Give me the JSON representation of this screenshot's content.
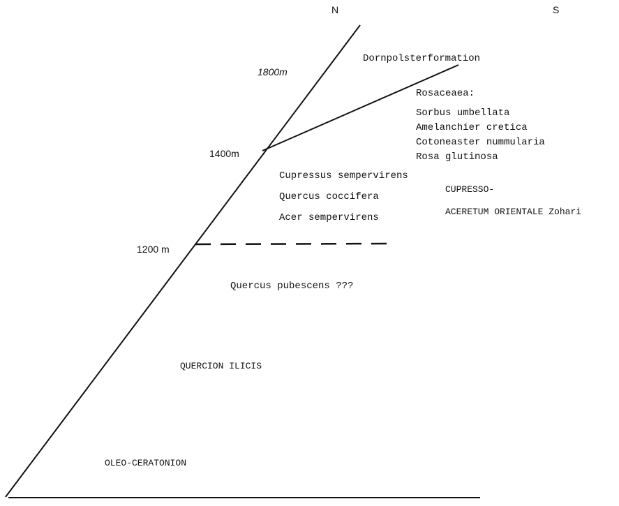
{
  "orientation": {
    "north": "N",
    "south": "S"
  },
  "altitudes": {
    "a1800": "1800m",
    "a1400": "1400m",
    "a1200": "1200 m"
  },
  "zones": {
    "upper": {
      "title": "Dornpolsterformation",
      "family": "Rosaceaea:",
      "species": [
        "Sorbus umbellata",
        "Amelanchier cretica",
        "Cotoneaster nummularia",
        "Rosa glutinosa"
      ]
    },
    "middle": {
      "species": [
        "Cupressus sempervirens",
        "Quercus coccifera",
        "Acer sempervirens"
      ],
      "association_line1": "CUPRESSO-",
      "association_line2": "ACERETUM ORIENTALE Zohari"
    },
    "lower": {
      "species": "Quercus pubescens ???",
      "alliance": "QUERCION ILICIS",
      "base": "OLEO-CERATONION"
    }
  }
}
